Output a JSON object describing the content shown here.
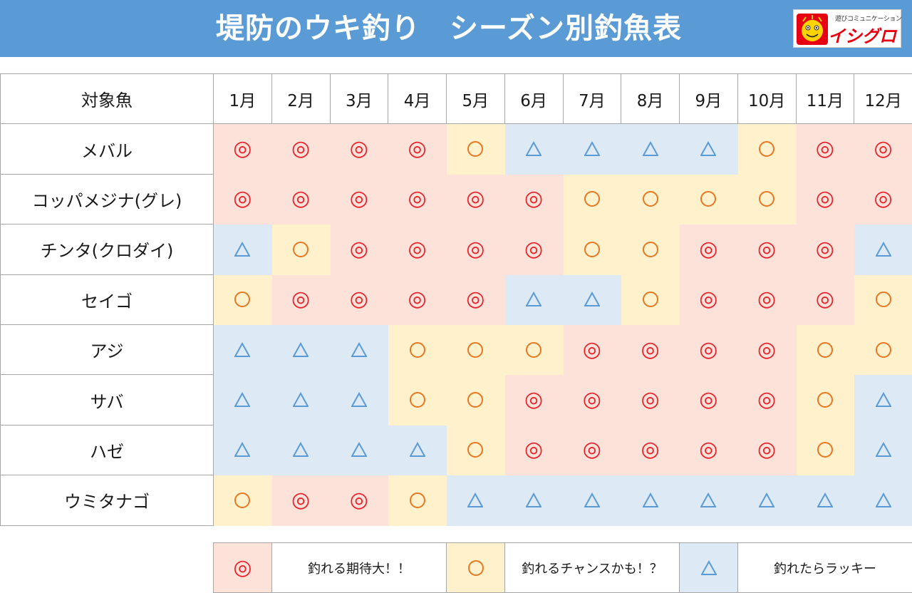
{
  "header": {
    "title": "堤防のウキ釣り　シーズン別釣魚表",
    "logo_sub": "遊びコミュニケーション",
    "logo_main": "イシグロ",
    "bg_color": "#5b9bd5"
  },
  "chart_data": {
    "type": "table",
    "row_header": "対象魚",
    "columns": [
      "1月",
      "2月",
      "3月",
      "4月",
      "5月",
      "6月",
      "7月",
      "8月",
      "9月",
      "10月",
      "11月",
      "12月"
    ],
    "rows": [
      {
        "fish": "メバル",
        "values": [
          "◎",
          "◎",
          "◎",
          "◎",
          "○",
          "△",
          "△",
          "△",
          "△",
          "○",
          "◎",
          "◎"
        ]
      },
      {
        "fish": "コッパメジナ(グレ)",
        "values": [
          "◎",
          "◎",
          "◎",
          "◎",
          "◎",
          "◎",
          "○",
          "○",
          "○",
          "○",
          "◎",
          "◎"
        ]
      },
      {
        "fish": "チンタ(クロダイ)",
        "values": [
          "△",
          "○",
          "◎",
          "◎",
          "◎",
          "◎",
          "○",
          "○",
          "◎",
          "◎",
          "◎",
          "△"
        ]
      },
      {
        "fish": "セイゴ",
        "values": [
          "○",
          "◎",
          "◎",
          "◎",
          "◎",
          "△",
          "△",
          "○",
          "◎",
          "◎",
          "◎",
          "○"
        ]
      },
      {
        "fish": "アジ",
        "values": [
          "△",
          "△",
          "△",
          "○",
          "○",
          "○",
          "◎",
          "◎",
          "◎",
          "◎",
          "○",
          "○"
        ]
      },
      {
        "fish": "サバ",
        "values": [
          "△",
          "△",
          "△",
          "○",
          "○",
          "◎",
          "◎",
          "◎",
          "◎",
          "◎",
          "○",
          "△"
        ]
      },
      {
        "fish": "ハゼ",
        "values": [
          "△",
          "△",
          "△",
          "△",
          "○",
          "◎",
          "◎",
          "◎",
          "◎",
          "◎",
          "○",
          "△"
        ]
      },
      {
        "fish": "ウミタナゴ",
        "values": [
          "○",
          "◎",
          "◎",
          "○",
          "△",
          "△",
          "△",
          "△",
          "△",
          "△",
          "△",
          "△"
        ]
      }
    ],
    "legend": [
      {
        "symbol": "◎",
        "label": "釣れる期待大！！",
        "color": "#fce2d9",
        "symbol_color": "#e8202a"
      },
      {
        "symbol": "○",
        "label": "釣れるチャンスかも！？",
        "color": "#fff1cc",
        "symbol_color": "#e87722"
      },
      {
        "symbol": "△",
        "label": "釣れたらラッキー",
        "color": "#dde9f5",
        "symbol_color": "#5b9bd5"
      }
    ]
  }
}
